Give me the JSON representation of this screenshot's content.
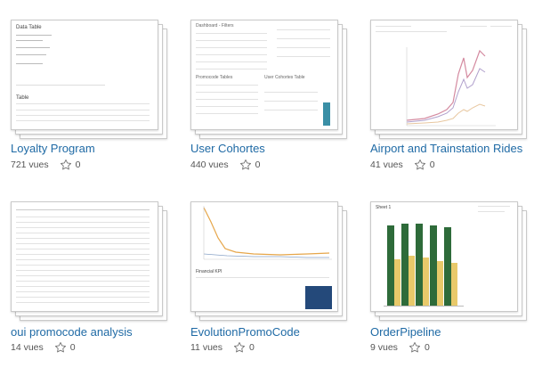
{
  "cards": [
    {
      "title": "Loyalty Program",
      "views": "721 vues",
      "favorites": "0"
    },
    {
      "title": "User Cohortes",
      "views": "440 vues",
      "favorites": "0"
    },
    {
      "title": "Airport and Trainstation Rides",
      "views": "41 vues",
      "favorites": "0"
    },
    {
      "title": "oui promocode analysis",
      "views": "14 vues",
      "favorites": "0"
    },
    {
      "title": "EvolutionPromoCode",
      "views": "11 vues",
      "favorites": "0"
    },
    {
      "title": "OrderPipeline",
      "views": "9 vues",
      "favorites": "0"
    }
  ],
  "thumbs": {
    "loyalty": {
      "heading": "Data Table",
      "section": "Table"
    },
    "cohortes": {
      "heading": "Dashboard - Filters",
      "promo": "Promocode Tables",
      "cohort": "User Cohortes Table"
    },
    "evolution": {
      "kpi": "Financial KPI"
    },
    "pipeline": {
      "sheet": "Sheet 1"
    }
  },
  "colors": {
    "link": "#1f6aa5",
    "green": "#2e6b3a",
    "yellow": "#e8c96a",
    "teal": "#3a8fa6",
    "navy": "#24497a"
  }
}
